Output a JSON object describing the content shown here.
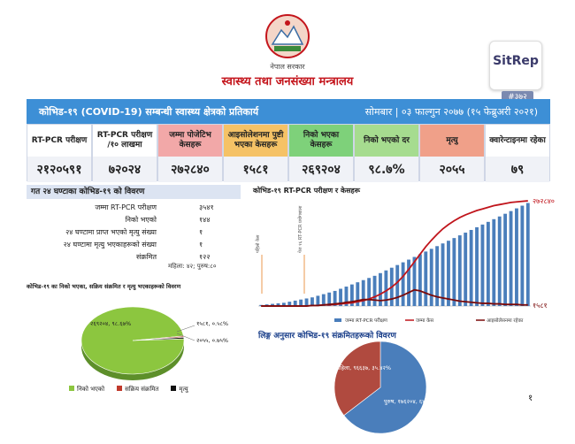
{
  "header": {
    "gov_name": "नेपाल सरकार",
    "ministry": "स्वास्थ्य तथा जनसंख्या मन्त्रालय",
    "sitrep_label": "SitRep",
    "sitrep_number": "#३७२"
  },
  "banner": {
    "title": "कोभिड-१९ (COVID-19) सम्बन्धी स्वास्थ्य क्षेत्रको प्रतिकार्य",
    "date": "सोमबार | ०३ फाल्गुन २०७७ (१५ फेब्रुअरी २०२१)"
  },
  "stats": [
    {
      "label": "RT-PCR परीक्षण",
      "value": "२१२०५९१",
      "color": "#ffffff"
    },
    {
      "label": "RT-PCR परीक्षण /१० लाखमा",
      "value": "७२०२४",
      "color": "#ffffff"
    },
    {
      "label": "जम्मा पोजेटिभ केसहरू",
      "value": "२७२८४०",
      "color": "#f2a8a8"
    },
    {
      "label": "आइसोलेशनमा पुष्टी भएका केसहरू",
      "value": "१५८१",
      "color": "#f5c266"
    },
    {
      "label": "निको भएका केसहरू",
      "value": "२६९२०४",
      "color": "#7ed17a"
    },
    {
      "label": "निको भएको दर",
      "value": "९८.७%",
      "color": "#a6dc8f"
    },
    {
      "label": "मृत्यु",
      "value": "२०५५",
      "color": "#f0a089"
    },
    {
      "label": "क्वारेन्टाइनमा रहेका",
      "value": "७९",
      "color": "#ffffff"
    }
  ],
  "last24": {
    "heading": "गत २४ घण्टाका कोभिड-१९ को विवरण",
    "rows": [
      {
        "label": "जम्मा RT-PCR परीक्षण",
        "value": "३५४१"
      },
      {
        "label": "निको भएको",
        "value": "१४४"
      },
      {
        "label": "२४ घण्टामा प्राप्त भएको मृत्यु संख्या",
        "value": "१"
      },
      {
        "label": "२४ घण्टामा मृत्यु भएकाहरूको संख्या",
        "value": "१"
      },
      {
        "label": "संक्रमित",
        "value": "१२२"
      }
    ],
    "note": "महिला: ४२; पुरुष:८०"
  },
  "chart_data": [
    {
      "type": "pie",
      "title": "कोभिड-१९ का निको भएका, सक्रिय संक्रमित र मृत्यु भएकाहरूको विवरण",
      "slices": [
        {
          "label": "निको भएको",
          "value": 269204,
          "text": "२६९२०४, ९८.६७%",
          "color": "#8cc63f"
        },
        {
          "label": "सक्रिय संक्रमित",
          "value": 1581,
          "text": "१५८१, ०.५८%",
          "color": "#c0392b"
        },
        {
          "label": "मृत्यु",
          "value": 2055,
          "text": "२०५५, ०.७५%",
          "color": "#111111"
        }
      ]
    },
    {
      "type": "bar",
      "title": "कोभिड-१९ RT-PCR परीक्षण र केसहरू",
      "annotations": [
        "पहिलो केस",
        "पेज १६ RT-PCR प्रयोगशाला"
      ],
      "series": [
        {
          "name": "जम्मा RT-PCR परीक्षण",
          "kind": "bar",
          "color": "#4a7ebb",
          "values": [
            2,
            3,
            4,
            5,
            6,
            8,
            10,
            12,
            14,
            16,
            19,
            22,
            25,
            28,
            32,
            36,
            40,
            44,
            48,
            52,
            56,
            61,
            66,
            71,
            76,
            81,
            86,
            91,
            96,
            101,
            106,
            111,
            116,
            121,
            126,
            131,
            136,
            141,
            146,
            151,
            156,
            161,
            166,
            171,
            176,
            181,
            186,
            191
          ]
        },
        {
          "name": "जम्मा केस",
          "kind": "line",
          "color": "#c0141b",
          "end_label": "२७२८४०",
          "values": [
            0,
            0,
            0,
            0,
            0,
            0,
            0,
            0,
            0,
            1,
            1,
            2,
            2,
            3,
            4,
            5,
            6,
            8,
            10,
            13,
            17,
            22,
            28,
            35,
            44,
            55,
            68,
            82,
            96,
            110,
            122,
            133,
            143,
            151,
            158,
            164,
            169,
            173,
            177,
            180,
            183,
            186,
            188,
            190,
            192,
            193,
            194,
            195
          ]
        },
        {
          "name": "आइसोलेसनमा रहेका",
          "kind": "line",
          "color": "#7a0a0a",
          "end_label": "१५८१",
          "values": [
            0,
            0,
            0,
            0,
            0,
            0,
            0,
            0,
            0,
            1,
            1,
            2,
            3,
            4,
            5,
            7,
            8,
            10,
            12,
            12,
            11,
            10,
            11,
            13,
            16,
            20,
            25,
            30,
            28,
            24,
            20,
            17,
            15,
            13,
            11,
            9,
            8,
            7,
            6,
            5,
            5,
            4,
            4,
            3,
            3,
            3,
            2,
            2
          ]
        }
      ]
    },
    {
      "type": "pie",
      "title": "लिङ्ग अनुसार कोभिड-१९ संक्रमितहरूको विवरण",
      "slices": [
        {
          "label": "पुरुष",
          "value": 176204,
          "text": "पुरुष, १७६२०४, ६४.५८%",
          "color": "#4a7ebb"
        },
        {
          "label": "महिला",
          "value": 96637,
          "text": "महिला, ९६६३७, ३५.४२%",
          "color": "#b04a3f"
        }
      ]
    }
  ],
  "page_number": "१"
}
